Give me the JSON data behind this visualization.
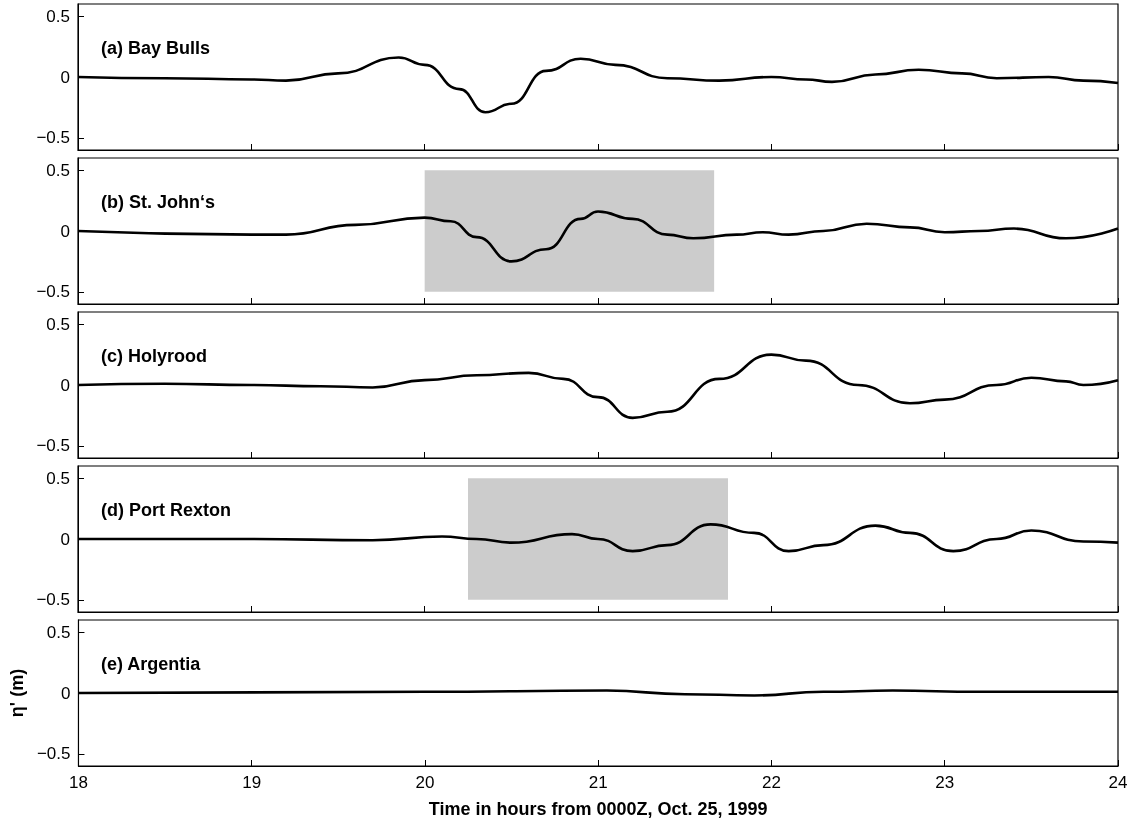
{
  "chart_data": [
    {
      "type": "line",
      "title": "(a) Bay Bulls",
      "xlim": [
        18,
        24
      ],
      "xticks": [
        18,
        19,
        20,
        21,
        22,
        23,
        24
      ],
      "ylim": [
        -0.6,
        0.6
      ],
      "yticks": [
        -0.5,
        0,
        0.5
      ],
      "grid": false,
      "tick_labels": "y",
      "series": [
        {
          "color": "#000000",
          "x": [
            18,
            18.5,
            19,
            19.2,
            19.5,
            19.85,
            20.0,
            20.2,
            20.35,
            20.5,
            20.7,
            20.9,
            21.1,
            21.4,
            21.7,
            22.0,
            22.2,
            22.35,
            22.6,
            22.85,
            23.1,
            23.3,
            23.6,
            23.8,
            24
          ],
          "values": [
            0,
            -0.01,
            -0.02,
            -0.03,
            0.03,
            0.16,
            0.1,
            -0.1,
            -0.29,
            -0.22,
            0.05,
            0.15,
            0.1,
            -0.01,
            -0.03,
            0.0,
            -0.02,
            -0.04,
            0.02,
            0.06,
            0.03,
            -0.01,
            0.0,
            -0.03,
            -0.05
          ]
        }
      ]
    },
    {
      "type": "line",
      "title": "(b) St. John‘s",
      "xlim": [
        18,
        24
      ],
      "xticks": [
        18,
        19,
        20,
        21,
        22,
        23,
        24
      ],
      "ylim": [
        -0.6,
        0.6
      ],
      "yticks": [
        -0.5,
        0,
        0.5
      ],
      "grid": false,
      "tick_labels": "y",
      "bands": [
        {
          "axis": "x",
          "from": 20,
          "to": 21.67,
          "color": "#cccccc"
        }
      ],
      "series": [
        {
          "color": "#000000",
          "x": [
            18,
            19,
            19.2,
            19.6,
            20.0,
            20.15,
            20.3,
            20.5,
            20.7,
            20.9,
            21.0,
            21.2,
            21.4,
            21.55,
            21.8,
            21.95,
            22.1,
            22.3,
            22.55,
            22.8,
            23.0,
            23.2,
            23.4,
            23.7,
            24
          ],
          "values": [
            0,
            -0.03,
            -0.03,
            0.05,
            0.11,
            0.08,
            -0.05,
            -0.25,
            -0.15,
            0.1,
            0.16,
            0.1,
            -0.03,
            -0.06,
            -0.03,
            -0.01,
            -0.03,
            0.0,
            0.06,
            0.03,
            -0.01,
            0.0,
            0.02,
            -0.06,
            0.02
          ]
        }
      ]
    },
    {
      "type": "line",
      "title": "(c) Holyrood",
      "xlim": [
        18,
        24
      ],
      "xticks": [
        18,
        19,
        20,
        21,
        22,
        23,
        24
      ],
      "ylim": [
        -0.6,
        0.6
      ],
      "yticks": [
        -0.5,
        0,
        0.5
      ],
      "grid": false,
      "tick_labels": "y",
      "series": [
        {
          "color": "#000000",
          "x": [
            18,
            18.5,
            19,
            19.4,
            19.7,
            20.0,
            20.3,
            20.6,
            20.8,
            21.0,
            21.2,
            21.4,
            21.7,
            22.0,
            22.2,
            22.5,
            22.8,
            23.0,
            23.3,
            23.5,
            23.7,
            23.8,
            24
          ],
          "values": [
            0,
            0.01,
            0,
            -0.01,
            -0.02,
            0.04,
            0.08,
            0.1,
            0.05,
            -0.1,
            -0.27,
            -0.22,
            0.05,
            0.25,
            0.2,
            0.0,
            -0.15,
            -0.12,
            0.0,
            0.06,
            0.03,
            0.0,
            0.04
          ]
        }
      ]
    },
    {
      "type": "line",
      "title": "(d) Port Rexton",
      "xlim": [
        18,
        24
      ],
      "xticks": [
        18,
        19,
        20,
        21,
        22,
        23,
        24
      ],
      "ylim": [
        -0.6,
        0.6
      ],
      "yticks": [
        -0.5,
        0,
        0.5
      ],
      "grid": false,
      "tick_labels": "y",
      "bands": [
        {
          "axis": "x",
          "from": 20.25,
          "to": 21.75,
          "color": "#cccccc"
        }
      ],
      "series": [
        {
          "color": "#000000",
          "x": [
            18,
            19,
            19.7,
            20.1,
            20.3,
            20.5,
            20.85,
            21.0,
            21.2,
            21.4,
            21.65,
            21.9,
            22.1,
            22.3,
            22.6,
            22.8,
            23.05,
            23.3,
            23.5,
            23.8,
            24
          ],
          "values": [
            0,
            0,
            -0.01,
            0.02,
            0.0,
            -0.03,
            0.04,
            0.0,
            -0.1,
            -0.05,
            0.12,
            0.05,
            -0.1,
            -0.05,
            0.11,
            0.05,
            -0.1,
            0.0,
            0.07,
            -0.02,
            -0.03
          ]
        }
      ]
    },
    {
      "type": "line",
      "title": "(e) Argentia",
      "xlabel": "Time in hours from 0000Z, Oct. 25, 1999",
      "ylabel": "η' (m)",
      "xlim": [
        18,
        24
      ],
      "xticks": [
        18,
        19,
        20,
        21,
        22,
        23,
        24
      ],
      "ylim": [
        -0.6,
        0.6
      ],
      "yticks": [
        -0.5,
        0,
        0.5
      ],
      "grid": false,
      "series": [
        {
          "color": "#000000",
          "x": [
            18,
            20,
            21.05,
            21.5,
            21.9,
            22.3,
            22.7,
            23.2,
            23.5,
            24
          ],
          "values": [
            0,
            0.01,
            0.02,
            -0.01,
            -0.02,
            0.01,
            0.02,
            0.01,
            0.01,
            0.01
          ]
        }
      ]
    }
  ]
}
